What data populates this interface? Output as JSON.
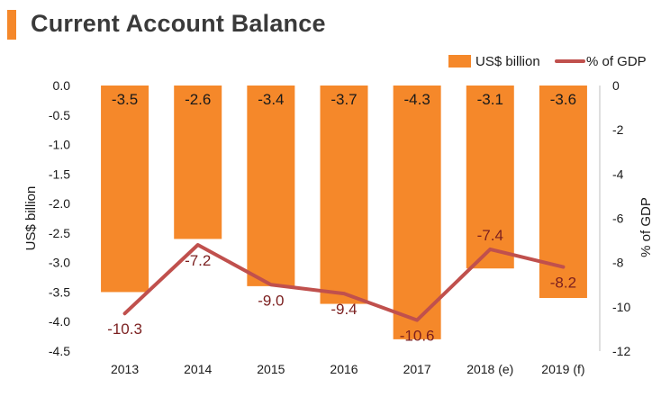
{
  "title": "Current Account Balance",
  "colors": {
    "accent": "#f5882a",
    "bar": "#f5882a",
    "line": "#c0504d",
    "line_label": "#7b1f1f"
  },
  "chart_data": {
    "type": "bar",
    "categories": [
      "2013",
      "2014",
      "2015",
      "2016",
      "2017",
      "2018 (e)",
      "2019 (f)"
    ],
    "series": [
      {
        "name": "US$ billion",
        "type": "bar",
        "axis": "left",
        "values": [
          -3.5,
          -2.6,
          -3.4,
          -3.7,
          -4.3,
          -3.1,
          -3.6
        ]
      },
      {
        "name": "% of GDP",
        "type": "line",
        "axis": "right",
        "values": [
          -10.3,
          -7.2,
          -9.0,
          -9.4,
          -10.6,
          -7.4,
          -8.2
        ]
      }
    ],
    "y_left": {
      "label": "US$ billion",
      "min": -4.5,
      "max": 0.0,
      "step": 0.5,
      "ticks": [
        "0.0",
        "-0.5",
        "-1.0",
        "-1.5",
        "-2.0",
        "-2.5",
        "-3.0",
        "-3.5",
        "-4.0",
        "-4.5"
      ]
    },
    "y_right": {
      "label": "% of GDP",
      "min": -12,
      "max": 0,
      "step": 2,
      "ticks": [
        "0",
        "-2",
        "-4",
        "-6",
        "-8",
        "-10",
        "-12"
      ]
    },
    "bar_labels": [
      "-3.5",
      "-2.6",
      "-3.4",
      "-3.7",
      "-4.3",
      "-3.1",
      "-3.6"
    ],
    "line_labels": [
      "-10.3",
      "-7.2",
      "-9.0",
      "-9.4",
      "-10.6",
      "-7.4",
      "-8.2"
    ],
    "legend_position": "top-right",
    "grid": false
  }
}
